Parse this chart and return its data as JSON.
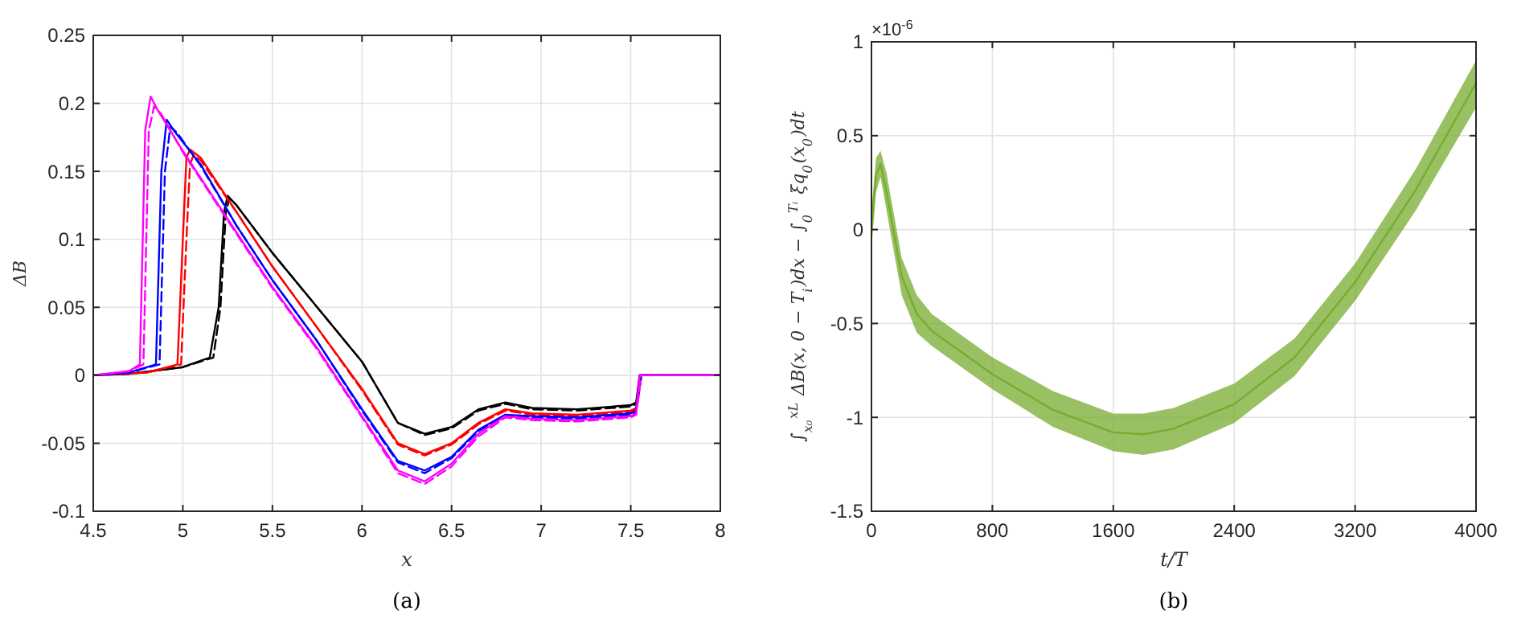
{
  "chart_data": [
    {
      "type": "line",
      "xlabel": "x",
      "ylabel": "ΔB",
      "xlim": [
        4.5,
        8
      ],
      "ylim": [
        -0.1,
        0.25
      ],
      "xticks": [
        4.5,
        5,
        5.5,
        6,
        6.5,
        7,
        7.5,
        8
      ],
      "yticks": [
        -0.1,
        -0.05,
        0,
        0.05,
        0.1,
        0.15,
        0.2,
        0.25
      ],
      "grid": true,
      "annotations": [
        "(a)"
      ],
      "series": [
        {
          "color": "#000000",
          "line_style": "solid",
          "x": [
            4.5,
            4.7,
            5.0,
            5.15,
            5.2,
            5.23,
            5.25,
            5.3,
            5.5,
            5.75,
            6.0,
            6.2,
            6.35,
            6.5,
            6.65,
            6.8,
            6.95,
            7.2,
            7.5,
            7.53,
            7.55,
            8
          ],
          "values": [
            0,
            0.001,
            0.006,
            0.013,
            0.05,
            0.12,
            0.132,
            0.125,
            0.09,
            0.05,
            0.01,
            -0.035,
            -0.043,
            -0.038,
            -0.025,
            -0.02,
            -0.024,
            -0.025,
            -0.022,
            -0.02,
            0,
            0
          ]
        },
        {
          "color": "#000000",
          "line_style": "dashed",
          "x": [
            4.5,
            4.7,
            5.0,
            5.17,
            5.21,
            5.24,
            5.26,
            5.3,
            5.5,
            5.75,
            6.0,
            6.2,
            6.35,
            6.5,
            6.65,
            6.8,
            6.95,
            7.2,
            7.5,
            7.53,
            7.56,
            8
          ],
          "values": [
            0,
            0.001,
            0.006,
            0.013,
            0.05,
            0.12,
            0.13,
            0.125,
            0.09,
            0.05,
            0.01,
            -0.035,
            -0.044,
            -0.039,
            -0.026,
            -0.021,
            -0.025,
            -0.026,
            -0.023,
            -0.021,
            0,
            0
          ]
        },
        {
          "color": "#ff0000",
          "line_style": "solid",
          "x": [
            4.5,
            4.8,
            4.97,
            5.0,
            5.02,
            5.04,
            5.1,
            5.3,
            5.5,
            5.75,
            6.0,
            6.2,
            6.35,
            6.5,
            6.65,
            6.8,
            6.95,
            7.2,
            7.5,
            7.53,
            7.55,
            8
          ],
          "values": [
            0,
            0.002,
            0.008,
            0.1,
            0.16,
            0.166,
            0.16,
            0.12,
            0.08,
            0.035,
            -0.01,
            -0.05,
            -0.058,
            -0.05,
            -0.035,
            -0.025,
            -0.028,
            -0.029,
            -0.026,
            -0.024,
            0,
            0
          ]
        },
        {
          "color": "#ff0000",
          "line_style": "dashed",
          "x": [
            4.5,
            4.8,
            4.99,
            5.02,
            5.04,
            5.06,
            5.1,
            5.3,
            5.5,
            5.75,
            6.0,
            6.2,
            6.35,
            6.5,
            6.65,
            6.8,
            6.95,
            7.2,
            7.5,
            7.53,
            7.56,
            8
          ],
          "values": [
            0,
            0.002,
            0.008,
            0.1,
            0.155,
            0.162,
            0.158,
            0.12,
            0.08,
            0.035,
            -0.011,
            -0.051,
            -0.059,
            -0.051,
            -0.036,
            -0.026,
            -0.029,
            -0.03,
            -0.027,
            -0.025,
            0,
            0
          ]
        },
        {
          "color": "#0000ff",
          "line_style": "solid",
          "x": [
            4.5,
            4.7,
            4.85,
            4.88,
            4.91,
            4.95,
            5.1,
            5.3,
            5.5,
            5.75,
            6.0,
            6.2,
            6.35,
            6.5,
            6.65,
            6.8,
            6.95,
            7.2,
            7.5,
            7.53,
            7.55,
            8
          ],
          "values": [
            0,
            0.002,
            0.008,
            0.15,
            0.188,
            0.18,
            0.155,
            0.11,
            0.07,
            0.025,
            -0.025,
            -0.063,
            -0.07,
            -0.06,
            -0.04,
            -0.029,
            -0.03,
            -0.031,
            -0.028,
            -0.026,
            0,
            0
          ]
        },
        {
          "color": "#0000ff",
          "line_style": "dashed",
          "x": [
            4.5,
            4.7,
            4.87,
            4.9,
            4.93,
            4.97,
            5.1,
            5.3,
            5.5,
            5.75,
            6.0,
            6.2,
            6.35,
            6.5,
            6.65,
            6.8,
            6.95,
            7.2,
            7.5,
            7.53,
            7.56,
            8
          ],
          "values": [
            0,
            0.002,
            0.008,
            0.15,
            0.183,
            0.178,
            0.154,
            0.11,
            0.07,
            0.025,
            -0.026,
            -0.064,
            -0.072,
            -0.061,
            -0.041,
            -0.03,
            -0.031,
            -0.032,
            -0.029,
            -0.027,
            0,
            0
          ]
        },
        {
          "color": "#ff00ff",
          "line_style": "solid",
          "x": [
            4.5,
            4.7,
            4.76,
            4.79,
            4.82,
            4.86,
            5.0,
            5.3,
            5.5,
            5.75,
            6.0,
            6.2,
            6.35,
            6.5,
            6.65,
            6.8,
            6.95,
            7.2,
            7.5,
            7.53,
            7.55,
            8
          ],
          "values": [
            0,
            0.003,
            0.008,
            0.18,
            0.205,
            0.195,
            0.165,
            0.105,
            0.065,
            0.02,
            -0.03,
            -0.07,
            -0.078,
            -0.065,
            -0.043,
            -0.03,
            -0.032,
            -0.033,
            -0.03,
            -0.028,
            0,
            0
          ]
        },
        {
          "color": "#ff00ff",
          "line_style": "dashed",
          "x": [
            4.5,
            4.7,
            4.78,
            4.81,
            4.84,
            4.88,
            5.0,
            5.3,
            5.5,
            5.75,
            6.0,
            6.2,
            6.35,
            6.5,
            6.65,
            6.8,
            6.95,
            7.2,
            7.5,
            7.53,
            7.56,
            8
          ],
          "values": [
            0,
            0.003,
            0.008,
            0.18,
            0.198,
            0.192,
            0.164,
            0.104,
            0.064,
            0.019,
            -0.031,
            -0.072,
            -0.08,
            -0.067,
            -0.045,
            -0.031,
            -0.033,
            -0.034,
            -0.031,
            -0.029,
            0,
            0
          ]
        }
      ]
    },
    {
      "type": "line",
      "xlabel": "t/T",
      "ylabel": "∫$_{x₀}$$^{xL}$ ΔB(x, 0 − T$_{i}$)dx − ∫$_{0}$$^{Tᵢ}$ ξq$_{0}$(x$_{0}$)dt",
      "xlim": [
        0,
        4000
      ],
      "ylim": [
        -1.5,
        1
      ],
      "xticks": [
        0,
        800,
        1600,
        2400,
        3200,
        4000
      ],
      "yticks": [
        -1.5,
        -1,
        -0.5,
        0,
        0.5,
        1
      ],
      "grid": true,
      "annotations": [
        "×10$^{-6}$",
        "(b)"
      ],
      "series": [
        {
          "color": "#77ac30",
          "x": [
            0,
            30,
            60,
            100,
            200,
            300,
            400,
            800,
            1200,
            1600,
            1800,
            2000,
            2400,
            2800,
            3200,
            3600,
            4000
          ],
          "values": [
            0,
            0.29,
            0.35,
            0.2,
            -0.25,
            -0.45,
            -0.54,
            -0.77,
            -0.96,
            -1.08,
            -1.09,
            -1.06,
            -0.93,
            -0.68,
            -0.28,
            0.21,
            0.78
          ],
          "lower": [
            -0.1,
            0.2,
            0.28,
            0.1,
            -0.35,
            -0.55,
            -0.62,
            -0.85,
            -1.05,
            -1.18,
            -1.2,
            -1.17,
            -1.03,
            -0.78,
            -0.38,
            0.1,
            0.65
          ],
          "upper": [
            0.1,
            0.38,
            0.42,
            0.3,
            -0.15,
            -0.35,
            -0.45,
            -0.68,
            -0.86,
            -0.98,
            -0.98,
            -0.95,
            -0.82,
            -0.58,
            -0.18,
            0.32,
            0.9
          ]
        }
      ]
    }
  ]
}
